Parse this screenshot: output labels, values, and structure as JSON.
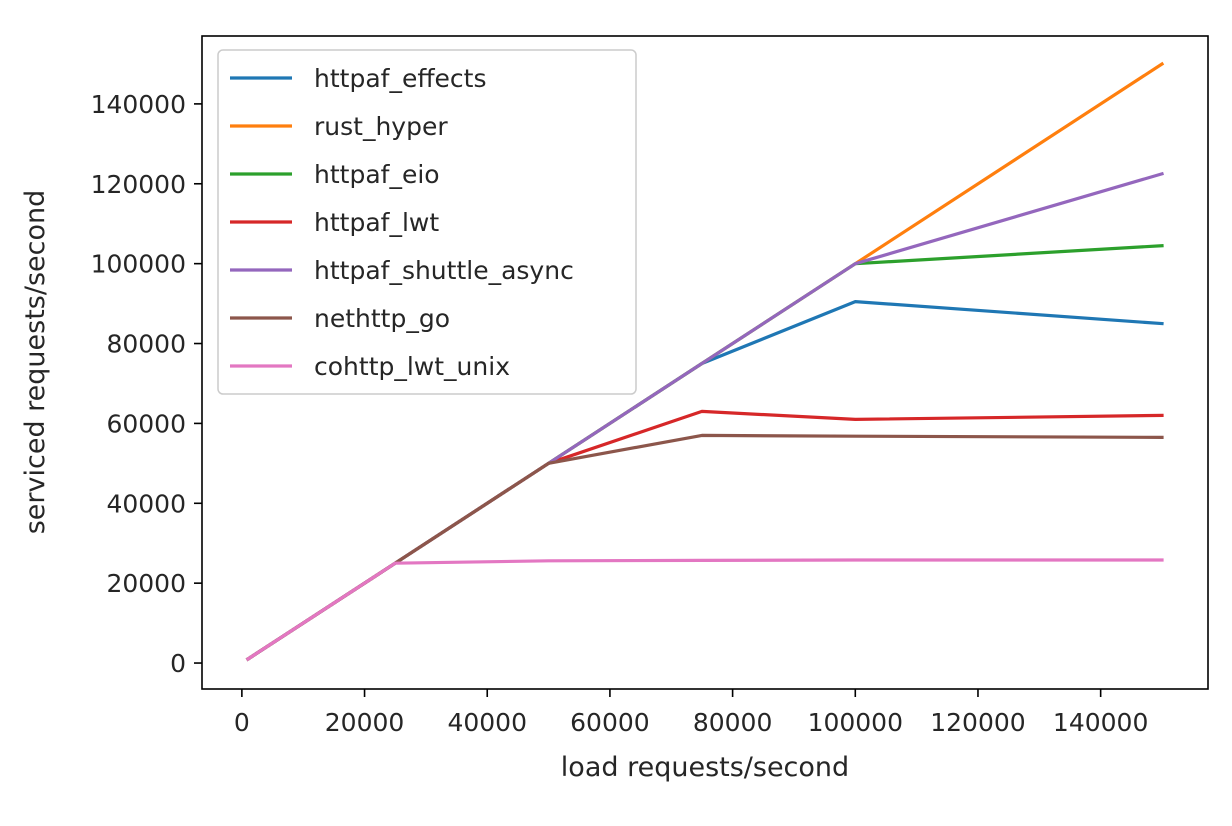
{
  "chart_data": {
    "type": "line",
    "title": "",
    "xlabel": "load requests/second",
    "ylabel": "serviced requests/second",
    "xlim": [
      -6500,
      157500
    ],
    "ylim": [
      -6500,
      157000
    ],
    "xticks": [
      0,
      20000,
      40000,
      60000,
      80000,
      100000,
      120000,
      140000
    ],
    "xtick_labels": [
      "0",
      "20000",
      "40000",
      "60000",
      "80000",
      "100000",
      "120000",
      "140000"
    ],
    "yticks": [
      0,
      20000,
      40000,
      60000,
      80000,
      100000,
      120000,
      140000
    ],
    "ytick_labels": [
      "0",
      "20000",
      "40000",
      "60000",
      "80000",
      "100000",
      "120000",
      "140000"
    ],
    "grid": false,
    "legend_position": "upper-left",
    "x": [
      1000,
      25000,
      50000,
      75000,
      100000,
      150000
    ],
    "series": [
      {
        "name": "httpaf_effects",
        "color": "#1f77b4",
        "values": [
          1000,
          25000,
          50000,
          75000,
          90500,
          85000
        ]
      },
      {
        "name": "rust_hyper",
        "color": "#ff7f0e",
        "values": [
          1000,
          25000,
          50000,
          75000,
          100000,
          150000
        ]
      },
      {
        "name": "httpaf_eio",
        "color": "#2ca02c",
        "values": [
          1000,
          25000,
          50000,
          75000,
          100000,
          104500
        ]
      },
      {
        "name": "httpaf_lwt",
        "color": "#d62728",
        "values": [
          1000,
          25000,
          50000,
          63000,
          61000,
          62000
        ]
      },
      {
        "name": "httpaf_shuttle_async",
        "color": "#9467bd",
        "values": [
          1000,
          25000,
          50000,
          75000,
          100000,
          122500
        ]
      },
      {
        "name": "nethttp_go",
        "color": "#8c564b",
        "values": [
          1000,
          25000,
          50000,
          57000,
          56800,
          56500
        ]
      },
      {
        "name": "cohttp_lwt_unix",
        "color": "#e377c2",
        "values": [
          1000,
          25000,
          25600,
          25700,
          25800,
          25800
        ]
      }
    ]
  }
}
